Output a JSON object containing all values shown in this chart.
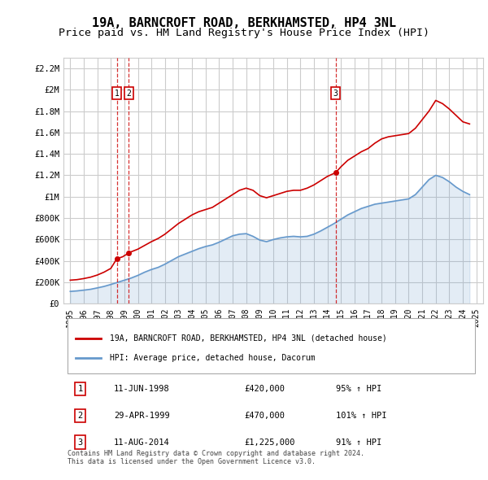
{
  "title": "19A, BARNCROFT ROAD, BERKHAMSTED, HP4 3NL",
  "subtitle": "Price paid vs. HM Land Registry's House Price Index (HPI)",
  "title_fontsize": 11,
  "subtitle_fontsize": 9.5,
  "background_color": "#ffffff",
  "plot_bg_color": "#ffffff",
  "grid_color": "#cccccc",
  "ylabel_ticks": [
    "£0",
    "£200K",
    "£400K",
    "£600K",
    "£800K",
    "£1M",
    "£1.2M",
    "£1.4M",
    "£1.6M",
    "£1.8M",
    "£2M",
    "£2.2M"
  ],
  "ytick_values": [
    0,
    200000,
    400000,
    600000,
    800000,
    1000000,
    1200000,
    1400000,
    1600000,
    1800000,
    2000000,
    2200000
  ],
  "ylim": [
    0,
    2300000
  ],
  "xlim_start": 1994.5,
  "xlim_end": 2025.5,
  "xtick_years": [
    1995,
    1996,
    1997,
    1998,
    1999,
    2000,
    2001,
    2002,
    2003,
    2004,
    2005,
    2006,
    2007,
    2008,
    2009,
    2010,
    2011,
    2012,
    2013,
    2014,
    2015,
    2016,
    2017,
    2018,
    2019,
    2020,
    2021,
    2022,
    2023,
    2024,
    2025
  ],
  "sale_dates": [
    1998.44,
    1999.33,
    2014.61
  ],
  "sale_prices": [
    420000,
    470000,
    1225000
  ],
  "sale_labels": [
    "1",
    "2",
    "3"
  ],
  "sale_color": "#cc0000",
  "hpi_line_color": "#6699cc",
  "price_line_color": "#cc0000",
  "vline_color": "#cc0000",
  "legend_label_red": "19A, BARNCROFT ROAD, BERKHAMSTED, HP4 3NL (detached house)",
  "legend_label_blue": "HPI: Average price, detached house, Dacorum",
  "table_rows": [
    [
      "1",
      "11-JUN-1998",
      "£420,000",
      "95% ↑ HPI"
    ],
    [
      "2",
      "29-APR-1999",
      "£470,000",
      "101% ↑ HPI"
    ],
    [
      "3",
      "11-AUG-2014",
      "£1,225,000",
      "91% ↑ HPI"
    ]
  ],
  "footnote": "Contains HM Land Registry data © Crown copyright and database right 2024.\nThis data is licensed under the Open Government Licence v3.0.",
  "red_hpi_x": [
    1995.0,
    1995.5,
    1996.0,
    1996.5,
    1997.0,
    1997.5,
    1998.0,
    1998.44,
    1998.9,
    1999.0,
    1999.33,
    1999.5,
    2000.0,
    2000.5,
    2001.0,
    2001.5,
    2002.0,
    2002.5,
    2003.0,
    2003.5,
    2004.0,
    2004.5,
    2005.0,
    2005.5,
    2006.0,
    2006.5,
    2007.0,
    2007.5,
    2008.0,
    2008.5,
    2009.0,
    2009.5,
    2010.0,
    2010.5,
    2011.0,
    2011.5,
    2012.0,
    2012.5,
    2013.0,
    2013.5,
    2014.0,
    2014.61,
    2015.0,
    2015.5,
    2016.0,
    2016.5,
    2017.0,
    2017.5,
    2018.0,
    2018.5,
    2019.0,
    2019.5,
    2020.0,
    2020.5,
    2021.0,
    2021.5,
    2022.0,
    2022.5,
    2023.0,
    2023.5,
    2024.0,
    2024.5
  ],
  "red_hpi_y": [
    220000,
    225000,
    235000,
    248000,
    268000,
    295000,
    330000,
    420000,
    440000,
    450000,
    470000,
    485000,
    510000,
    545000,
    580000,
    610000,
    650000,
    700000,
    750000,
    790000,
    830000,
    860000,
    880000,
    900000,
    940000,
    980000,
    1020000,
    1060000,
    1080000,
    1060000,
    1010000,
    990000,
    1010000,
    1030000,
    1050000,
    1060000,
    1060000,
    1080000,
    1110000,
    1150000,
    1190000,
    1225000,
    1280000,
    1340000,
    1380000,
    1420000,
    1450000,
    1500000,
    1540000,
    1560000,
    1570000,
    1580000,
    1590000,
    1640000,
    1720000,
    1800000,
    1900000,
    1870000,
    1820000,
    1760000,
    1700000,
    1680000
  ],
  "blue_hpi_x": [
    1995.0,
    1995.5,
    1996.0,
    1996.5,
    1997.0,
    1997.5,
    1998.0,
    1998.5,
    1999.0,
    1999.5,
    2000.0,
    2000.5,
    2001.0,
    2001.5,
    2002.0,
    2002.5,
    2003.0,
    2003.5,
    2004.0,
    2004.5,
    2005.0,
    2005.5,
    2006.0,
    2006.5,
    2007.0,
    2007.5,
    2008.0,
    2008.5,
    2009.0,
    2009.5,
    2010.0,
    2010.5,
    2011.0,
    2011.5,
    2012.0,
    2012.5,
    2013.0,
    2013.5,
    2014.0,
    2014.5,
    2015.0,
    2015.5,
    2016.0,
    2016.5,
    2017.0,
    2017.5,
    2018.0,
    2018.5,
    2019.0,
    2019.5,
    2020.0,
    2020.5,
    2021.0,
    2021.5,
    2022.0,
    2022.5,
    2023.0,
    2023.5,
    2024.0,
    2024.5
  ],
  "blue_hpi_y": [
    115000,
    120000,
    127000,
    135000,
    148000,
    162000,
    180000,
    200000,
    220000,
    240000,
    265000,
    295000,
    320000,
    340000,
    370000,
    405000,
    440000,
    465000,
    490000,
    515000,
    535000,
    550000,
    575000,
    605000,
    635000,
    650000,
    655000,
    630000,
    595000,
    580000,
    600000,
    615000,
    625000,
    630000,
    625000,
    630000,
    650000,
    680000,
    715000,
    750000,
    790000,
    830000,
    860000,
    890000,
    910000,
    930000,
    940000,
    950000,
    960000,
    970000,
    980000,
    1020000,
    1090000,
    1160000,
    1200000,
    1180000,
    1140000,
    1090000,
    1050000,
    1020000
  ]
}
